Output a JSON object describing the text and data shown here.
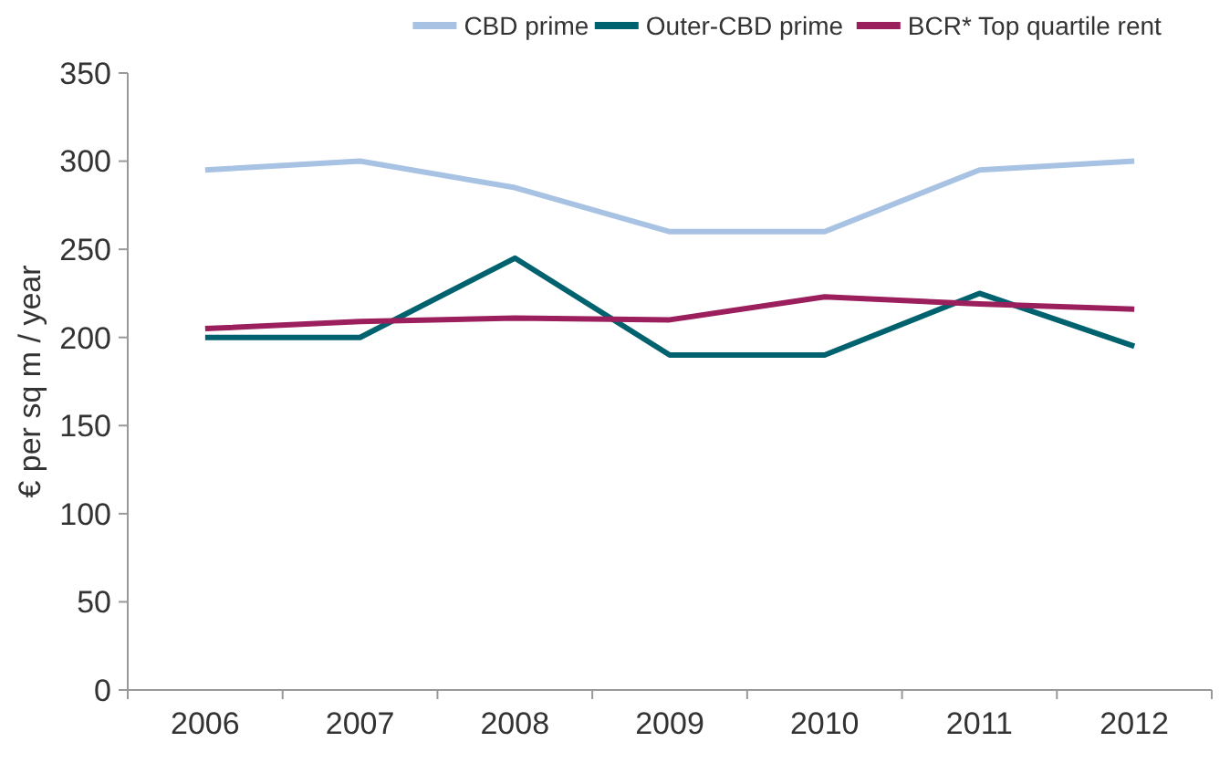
{
  "chart_data": {
    "type": "line",
    "ylabel": "€  per sq m / year",
    "categories": [
      "2006",
      "2007",
      "2008",
      "2009",
      "2010",
      "2011",
      "2012"
    ],
    "series": [
      {
        "name": "CBD prime",
        "color": "#a7c2e2",
        "values": [
          295,
          300,
          285,
          260,
          260,
          295,
          300
        ]
      },
      {
        "name": "Outer-CBD prime",
        "color": "#00626e",
        "values": [
          200,
          200,
          245,
          190,
          190,
          225,
          195
        ]
      },
      {
        "name": "BCR* Top quartile rent",
        "color": "#9c1f5d",
        "values": [
          205,
          209,
          211,
          210,
          223,
          219,
          216
        ]
      }
    ],
    "ylim": [
      0,
      350
    ],
    "yticks": [
      0,
      50,
      100,
      150,
      200,
      250,
      300,
      350
    ],
    "grid": false,
    "legend": "top right",
    "marker": "none",
    "line_style": "solid"
  }
}
